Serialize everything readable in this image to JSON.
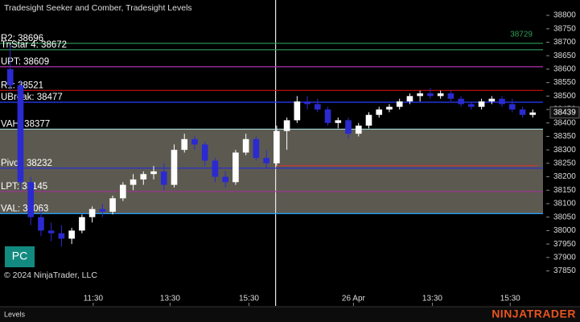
{
  "title": "Tradesight Seeker and Comber, Tradesight Levels",
  "copyright": "© 2024 NinjaTrader, LLC",
  "button": "PC",
  "tab": "Levels",
  "logo": "NINJATRADER",
  "chart_data": {
    "type": "candlestick",
    "categories": [
      null,
      null,
      null,
      null,
      null,
      null,
      null,
      null,
      null,
      null,
      null,
      null,
      null,
      null,
      null,
      null,
      null,
      null,
      null,
      null,
      null,
      null,
      null,
      null,
      null,
      null,
      null,
      null,
      null,
      null,
      null,
      null,
      null,
      null,
      null,
      null,
      null,
      null,
      null,
      null,
      null,
      null,
      null,
      null,
      null,
      null,
      null,
      null,
      null,
      null,
      null,
      null
    ],
    "open": [
      38600,
      38540,
      38180,
      38050,
      38000,
      37990,
      37970,
      38000,
      38050,
      38080,
      38070,
      38120,
      38170,
      38190,
      38210,
      38220,
      38170,
      38300,
      38340,
      38320,
      38260,
      38200,
      38180,
      38290,
      38340,
      38270,
      38250,
      38370,
      38410,
      38480,
      38470,
      38450,
      38400,
      38410,
      38360,
      38390,
      38430,
      38450,
      38460,
      38480,
      38500,
      38510,
      38500,
      38510,
      38490,
      38470,
      38460,
      38480,
      38490,
      38470,
      38450,
      38430
    ],
    "high": [
      38690,
      38560,
      38200,
      38080,
      38030,
      38020,
      38010,
      38060,
      38090,
      38100,
      38130,
      38180,
      38210,
      38220,
      38240,
      38250,
      38320,
      38360,
      38350,
      38330,
      38270,
      38220,
      38300,
      38360,
      38350,
      38300,
      38390,
      38420,
      38500,
      38500,
      38490,
      38460,
      38420,
      38420,
      38400,
      38440,
      38460,
      38470,
      38490,
      38510,
      38520,
      38530,
      38520,
      38520,
      38500,
      38480,
      38490,
      38500,
      38500,
      38490,
      38460,
      38450
    ],
    "low": [
      38520,
      38150,
      38020,
      37980,
      37960,
      37940,
      37950,
      37990,
      38030,
      38050,
      38060,
      38110,
      38150,
      38170,
      38190,
      38150,
      38160,
      38290,
      38300,
      38240,
      38180,
      38160,
      38170,
      38280,
      38260,
      38230,
      38240,
      38300,
      38400,
      38450,
      38440,
      38390,
      38380,
      38340,
      38350,
      38380,
      38420,
      38440,
      38450,
      38470,
      38480,
      38490,
      38490,
      38480,
      38460,
      38450,
      38450,
      38470,
      38460,
      38440,
      38420,
      38420
    ],
    "close": [
      38540,
      38180,
      38050,
      38000,
      37990,
      37970,
      38000,
      38050,
      38080,
      38070,
      38120,
      38170,
      38190,
      38210,
      38220,
      38170,
      38300,
      38340,
      38320,
      38260,
      38200,
      38180,
      38290,
      38340,
      38270,
      38250,
      38370,
      38410,
      38480,
      38470,
      38450,
      38400,
      38410,
      38360,
      38390,
      38430,
      38450,
      38460,
      38480,
      38500,
      38510,
      38500,
      38510,
      38490,
      38470,
      38460,
      38480,
      38490,
      38470,
      38450,
      38430,
      38439
    ],
    "up_color": "#ffffff",
    "down_color": "#2a2ad0",
    "xlim": [
      -1,
      52
    ],
    "xticks": [
      {
        "value": 8.1,
        "label": "11:30"
      },
      {
        "value": 15.6,
        "label": "13:30"
      },
      {
        "value": 23.3,
        "label": "15:30"
      },
      {
        "value": 33.5,
        "label": "26 Apr"
      },
      {
        "value": 41.2,
        "label": "13:30"
      },
      {
        "value": 48.8,
        "label": "15:30"
      }
    ],
    "ylim": [
      37720,
      38857
    ],
    "yticks": [
      37850,
      37900,
      37950,
      38000,
      38050,
      38100,
      38150,
      38200,
      38250,
      38300,
      38350,
      38400,
      38450,
      38500,
      38550,
      38600,
      38650,
      38700,
      38750,
      38800
    ],
    "session_break": 25.9,
    "levels": [
      {
        "label": "R2: 38696",
        "value": 38696,
        "color": "#2e9e5a"
      },
      {
        "label": "TriStar 4: 38672",
        "value": 38672,
        "color": "#2e9e5a"
      },
      {
        "label": "UPT: 38609",
        "value": 38609,
        "color": "#b030b0"
      },
      {
        "label": "R1: 38521",
        "value": 38521,
        "color": "#d01010"
      },
      {
        "label": "UBreak: 38477",
        "value": 38477,
        "color": "#2a3cff"
      },
      {
        "label": "VAH: 38377",
        "value": 38377,
        "color": "#a8d8d8"
      },
      {
        "label": "Pivot: 38232",
        "value": 38232,
        "color": "#2a30c8"
      },
      {
        "label": "LPT: 38145",
        "value": 38145,
        "color": "#a0309a"
      },
      {
        "label": "VAL: 38063",
        "value": 38063,
        "color": "#20a0ff"
      }
    ],
    "value_area_color": "#5c5a50",
    "annotation": {
      "text": "38729",
      "value": 38729,
      "color": "#2e9e5a"
    },
    "red_line": {
      "value": 38241,
      "color": "#e03030"
    },
    "last_price": 38439
  }
}
